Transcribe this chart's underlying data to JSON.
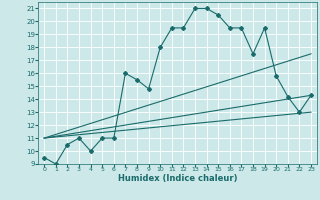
{
  "bg_color": "#cce8e8",
  "grid_color": "#ffffff",
  "line_color": "#1a6b6b",
  "xlabel": "Humidex (Indice chaleur)",
  "xlim": [
    -0.5,
    23.5
  ],
  "ylim": [
    9,
    21.5
  ],
  "xticks": [
    0,
    1,
    2,
    3,
    4,
    5,
    6,
    7,
    8,
    9,
    10,
    11,
    12,
    13,
    14,
    15,
    16,
    17,
    18,
    19,
    20,
    21,
    22,
    23
  ],
  "yticks": [
    9,
    10,
    11,
    12,
    13,
    14,
    15,
    16,
    17,
    18,
    19,
    20,
    21
  ],
  "series": [
    {
      "x": [
        0,
        1,
        2,
        3,
        4,
        5,
        6,
        7,
        8,
        9,
        10,
        11,
        12,
        13,
        14,
        15,
        16,
        17,
        18,
        19,
        20,
        21,
        22,
        23
      ],
      "y": [
        9.5,
        9.0,
        10.5,
        11.0,
        10.0,
        11.0,
        11.0,
        16.0,
        15.5,
        14.8,
        18.0,
        19.5,
        19.5,
        21.0,
        21.0,
        20.5,
        19.5,
        19.5,
        17.5,
        19.5,
        15.8,
        14.2,
        13.0,
        14.3
      ],
      "marker": "D",
      "markersize": 2.0,
      "linewidth": 0.8
    },
    {
      "x": [
        0,
        23
      ],
      "y": [
        11.0,
        17.5
      ],
      "marker": null,
      "linewidth": 0.8
    },
    {
      "x": [
        0,
        23
      ],
      "y": [
        11.0,
        14.3
      ],
      "marker": null,
      "linewidth": 0.8
    },
    {
      "x": [
        0,
        23
      ],
      "y": [
        11.0,
        13.0
      ],
      "marker": null,
      "linewidth": 0.8
    }
  ]
}
